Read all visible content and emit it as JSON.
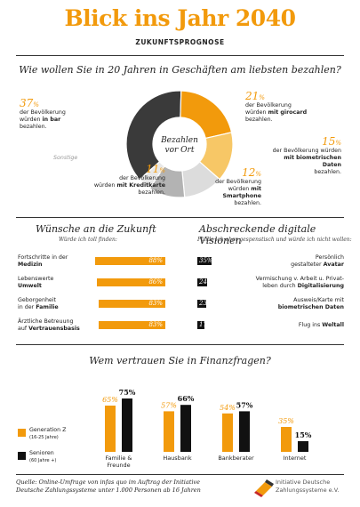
{
  "header": {
    "title": "Blick ins Jahr 2040",
    "subtitle": "ZUKUNFTSPROGNOSE"
  },
  "colors": {
    "orange": "#f29a0c",
    "black": "#111111",
    "dark_gray": "#3a3a3a",
    "light_orange": "#f7c766",
    "light_gray": "#dcdcdc",
    "mid_gray": "#b3b3b3"
  },
  "payment": {
    "title": "Wie wollen Sie in 20 Jahren in Geschäften am liebsten bezahlen?",
    "center_label_1": "Bezahlen",
    "center_label_2": "vor Ort",
    "bar": {
      "pct": "37",
      "unit": "%",
      "l1": "der Bevölkerung",
      "l2a": "würden ",
      "l2b": "in bar",
      "l3": "bezahlen."
    },
    "girocard": {
      "pct": "21",
      "unit": "%",
      "l1": "der Bevölkerung",
      "l2a": "würden ",
      "l2b": "mit girocard",
      "l3": "bezahlen."
    },
    "biometric": {
      "pct": "15",
      "unit": "%",
      "l1": "der Bevölkerung würden",
      "l2b": "mit biometrischen Daten",
      "l3": "bezahlen."
    },
    "smartphone": {
      "pct": "12",
      "unit": "%",
      "l1": "der Bevölkerung",
      "l2a": "würden ",
      "l2b": "mit Smartphone",
      "l3": "bezahlen."
    },
    "creditcard": {
      "pct": "11",
      "unit": "%",
      "l1": "der Bevölkerung",
      "l2a": "würden ",
      "l2b": "mit Kreditkarte",
      "l3": "bezahlen."
    },
    "other_label": "Sonstige"
  },
  "wishes": {
    "title": "Wünsche an die Zukunft",
    "subtitle": "Würde ich toll finden:",
    "items": [
      {
        "l1": "Fortschritte in der",
        "l2": "Medizin",
        "value": "88%"
      },
      {
        "l1": "Lebenswerte",
        "l2": "Umwelt",
        "value": "86%"
      },
      {
        "l1": "Geborgenheit",
        "l2a": "in der ",
        "l2": "Familie",
        "value": "83%"
      },
      {
        "l1": "Ärztliche Betreuung",
        "l2a": "auf ",
        "l2": "Vertrauensbasis",
        "value": "83%"
      }
    ]
  },
  "fears": {
    "title": "Abschreckende digitale Visionen",
    "subtitle": "Fände ich eher gespenstisch und würde ich nicht wollen:",
    "items": [
      {
        "l1": "Persönlich",
        "l2a": "gestalteter ",
        "l2": "Avatar",
        "value": "35%"
      },
      {
        "l1": "Vermischung v. Arbeit u. Privat-",
        "l2a": "leben durch ",
        "l2": "Digitalisierung",
        "value": "24%"
      },
      {
        "l1": "Ausweis/Karte mit",
        "l2a": "",
        "l2": "biometrischen Daten",
        "value": "23%"
      },
      {
        "l1": "",
        "l2a": "Flug ins ",
        "l2": "Weltall",
        "value": "17%"
      }
    ]
  },
  "trust": {
    "title": "Wem vertrauen Sie in Finanzfragen?",
    "legend_gen_z": "Generation Z",
    "legend_gen_z_sub": "(16-25 Jahre)",
    "legend_senior": "Senioren",
    "legend_senior_sub": "(60 Jahre +)"
  },
  "chart_data": [
    {
      "type": "pie",
      "title": "Wie wollen Sie in 20 Jahren in Geschäften am liebsten bezahlen?",
      "categories": [
        "in bar",
        "mit girocard",
        "mit biometrischen Daten",
        "mit Smartphone",
        "mit Kreditkarte",
        "Sonstige"
      ],
      "values": [
        37,
        21,
        15,
        12,
        11,
        4
      ]
    },
    {
      "type": "bar",
      "title": "Wünsche an die Zukunft",
      "categories": [
        "Fortschritte in der Medizin",
        "Lebenswerte Umwelt",
        "Geborgenheit in der Familie",
        "Ärztliche Betreuung auf Vertrauensbasis"
      ],
      "values": [
        88,
        86,
        83,
        83
      ]
    },
    {
      "type": "bar",
      "title": "Abschreckende digitale Visionen",
      "categories": [
        "Persönlich gestalteter Avatar",
        "Vermischung v. Arbeit u. Privatleben durch Digitalisierung",
        "Ausweis/Karte mit biometrischen Daten",
        "Flug ins Weltall"
      ],
      "values": [
        35,
        24,
        23,
        17
      ]
    },
    {
      "type": "bar",
      "title": "Wem vertrauen Sie in Finanzfragen?",
      "categories": [
        "Familie & Freunde",
        "Hausbank",
        "Bankberater",
        "Internet"
      ],
      "series": [
        {
          "name": "Generation Z",
          "values": [
            65,
            57,
            54,
            35
          ]
        },
        {
          "name": "Senioren",
          "values": [
            75,
            66,
            57,
            15
          ]
        }
      ],
      "value_labels": {
        "Generation Z": [
          "65%",
          "57%",
          "54%",
          "35%"
        ],
        "Senioren": [
          "75%",
          "66%",
          "57%",
          "15%"
        ]
      },
      "category_labels": [
        [
          "Familie &",
          "Freunde"
        ],
        [
          "Hausbank"
        ],
        [
          "Bankberater"
        ],
        [
          "Internet"
        ]
      ]
    }
  ],
  "footer": {
    "source_1": "Quelle: Online-Umfrage von infas quo im Auftrag der Initiative",
    "source_2": "Deutsche Zahlungssysteme unter 1.000 Personen ab 16 Jahren",
    "org_1": "Initiative Deutsche",
    "org_2": "Zahlungssysteme e.V."
  }
}
